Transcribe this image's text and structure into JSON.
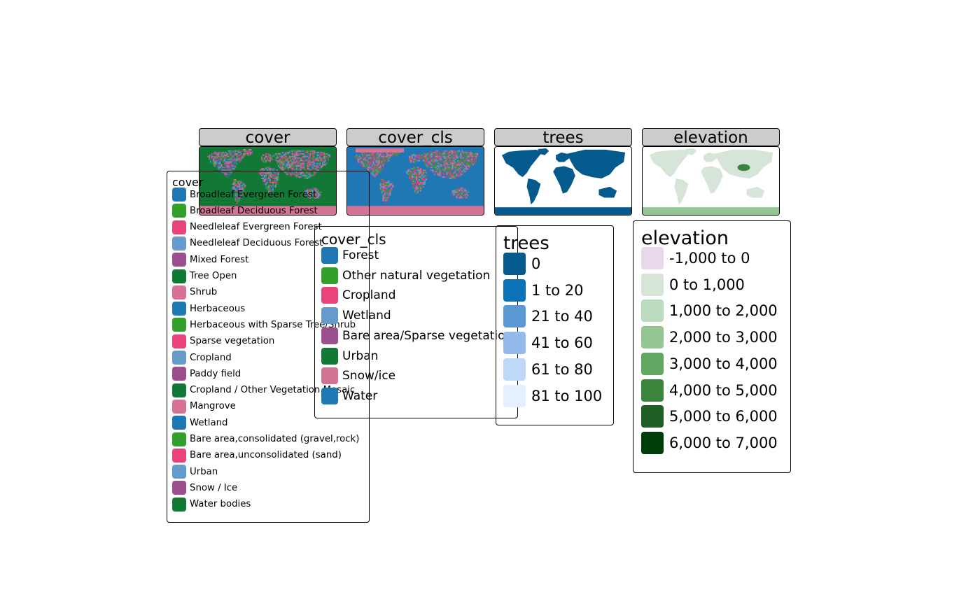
{
  "facets": [
    {
      "id": "cover",
      "label": "cover"
    },
    {
      "id": "cover_cls",
      "label": "cover_cls"
    },
    {
      "id": "trees",
      "label": "trees"
    },
    {
      "id": "elevation",
      "label": "elevation"
    }
  ],
  "legends": {
    "cover": {
      "title": "cover",
      "items": [
        {
          "label": "Broadleaf Evergreen Forest",
          "color": "#1f78b4"
        },
        {
          "label": "Broadleaf Deciduous Forest",
          "color": "#33a02c"
        },
        {
          "label": "Needleleaf Evergreen Forest",
          "color": "#e8437a"
        },
        {
          "label": "Needleleaf Deciduous Forest",
          "color": "#6699cc"
        },
        {
          "label": "Mixed Forest",
          "color": "#9b4f8f"
        },
        {
          "label": "Tree Open",
          "color": "#127836"
        },
        {
          "label": "Shrub",
          "color": "#d57396"
        },
        {
          "label": "Herbaceous",
          "color": "#1f78b4"
        },
        {
          "label": "Herbaceous with Sparse Tree/Shrub",
          "color": "#33a02c"
        },
        {
          "label": "Sparse vegetation",
          "color": "#e8437a"
        },
        {
          "label": "Cropland",
          "color": "#6699cc"
        },
        {
          "label": "Paddy field",
          "color": "#9b4f8f"
        },
        {
          "label": "Cropland / Other Vegetation Mosaic",
          "color": "#127836"
        },
        {
          "label": "Mangrove",
          "color": "#d57396"
        },
        {
          "label": "Wetland",
          "color": "#1f78b4"
        },
        {
          "label": "Bare area,consolidated (gravel,rock)",
          "color": "#33a02c"
        },
        {
          "label": "Bare area,unconsolidated (sand)",
          "color": "#e8437a"
        },
        {
          "label": "Urban",
          "color": "#6699cc"
        },
        {
          "label": "Snow / Ice",
          "color": "#9b4f8f"
        },
        {
          "label": "Water bodies",
          "color": "#127836"
        }
      ]
    },
    "cover_cls": {
      "title": "cover_cls",
      "items": [
        {
          "label": "Forest",
          "color": "#1f78b4"
        },
        {
          "label": "Other natural vegetation",
          "color": "#33a02c"
        },
        {
          "label": "Cropland",
          "color": "#e8437a"
        },
        {
          "label": "Wetland",
          "color": "#6699cc"
        },
        {
          "label": "Bare area/Sparse vegetation",
          "color": "#9b4f8f"
        },
        {
          "label": "Urban",
          "color": "#127836"
        },
        {
          "label": "Snow/ice",
          "color": "#d57396"
        },
        {
          "label": "Water",
          "color": "#1f78b4"
        }
      ]
    },
    "trees": {
      "title": "trees",
      "items": [
        {
          "label": "0",
          "color": "#045a8d"
        },
        {
          "label": "1 to 20",
          "color": "#0a73b8"
        },
        {
          "label": "21 to 40",
          "color": "#5c98d4"
        },
        {
          "label": "41 to 60",
          "color": "#94b9eb"
        },
        {
          "label": "61 to 80",
          "color": "#c0d8f7"
        },
        {
          "label": "81 to 100",
          "color": "#e4f0ff"
        }
      ]
    },
    "elevation": {
      "title": "elevation",
      "items": [
        {
          "label": "-1,000 to 0",
          "color": "#e7d9e9"
        },
        {
          "label": "0 to 1,000",
          "color": "#d7e4d8"
        },
        {
          "label": "1,000 to 2,000",
          "color": "#bcdcbf"
        },
        {
          "label": "2,000 to 3,000",
          "color": "#93c693"
        },
        {
          "label": "3,000 to 4,000",
          "color": "#62a862"
        },
        {
          "label": "4,000 to 5,000",
          "color": "#3a853c"
        },
        {
          "label": "5,000 to 6,000",
          "color": "#1d5f24"
        },
        {
          "label": "6,000 to 7,000",
          "color": "#003c09"
        }
      ]
    }
  },
  "colors": {
    "strip_bg": "#cccccc",
    "cover_map_bg": "#127836",
    "cover_cls_map_bg": "#1f78b4",
    "antarctica_pink": "#d57396",
    "trees_land": "#045a8d",
    "elevation_land": "#d7e4d8"
  }
}
